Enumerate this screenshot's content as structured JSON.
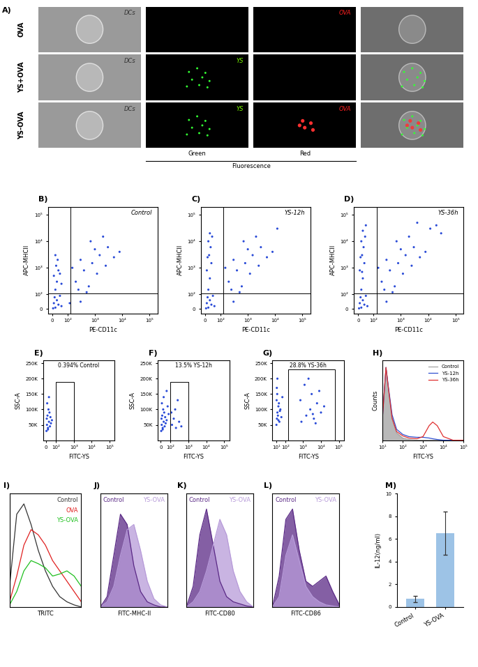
{
  "micrographs": {
    "panel": "A)",
    "rows": [
      {
        "label": "OVA",
        "texts": [
          "DCs",
          null,
          "OVA",
          null
        ],
        "signals": []
      },
      {
        "label": "YS+OVA",
        "texts": [
          "DCs",
          "YS",
          null,
          null
        ],
        "signals": [
          "green"
        ]
      },
      {
        "label": "YS-OVA",
        "texts": [
          "DCs",
          "YS",
          "OVA",
          null
        ],
        "signals": [
          "green",
          "red"
        ]
      }
    ],
    "channel_labels": [
      "Green",
      "Red"
    ],
    "footer": "Fluorescence"
  },
  "chart_data": [
    {
      "panel": "B)",
      "type": "scatter",
      "title": "Control",
      "x_label": "PE-CD11c",
      "y_label": "APC-MHCII",
      "log": true,
      "color": "#2a4bd7",
      "x": [
        5,
        20,
        40,
        10,
        30,
        60,
        15,
        50,
        20,
        30,
        10,
        40,
        25,
        35,
        20,
        50,
        60,
        200,
        400,
        800,
        1500,
        3000,
        600,
        1000,
        2500,
        5000,
        300,
        150,
        700,
        2000,
        8000,
        250,
        500,
        120,
        300,
        1200
      ],
      "y": [
        5,
        10,
        30,
        40,
        60,
        20,
        80,
        90,
        150,
        300,
        500,
        800,
        1200,
        2000,
        3000,
        600,
        250,
        300,
        800,
        1500,
        3000,
        6000,
        200,
        5000,
        1200,
        2500,
        2000,
        1000,
        10000,
        15000,
        4000,
        150,
        120,
        40,
        50,
        600
      ],
      "gate": {
        "x": 130,
        "y": 110
      },
      "xlim": [
        -30,
        200000
      ],
      "ylim": [
        -30,
        200000
      ],
      "xticks": [
        0,
        {
          "value": 100,
          "label": "10²"
        },
        {
          "value": 1000,
          "label": "10³"
        },
        {
          "value": 10000,
          "label": "10⁴"
        },
        {
          "value": 100000,
          "label": "10⁵"
        }
      ],
      "yticks": [
        0,
        {
          "value": 100,
          "label": "10²"
        },
        {
          "value": 1000,
          "label": "10³"
        },
        {
          "value": 10000,
          "label": "10⁴"
        },
        {
          "value": 100000,
          "label": "10⁵"
        }
      ]
    },
    {
      "panel": "C)",
      "type": "scatter",
      "title": "YS-12h",
      "x_label": "PE-CD11c",
      "y_label": "APC-MHCII",
      "log": true,
      "color": "#2a4bd7",
      "x": [
        5,
        20,
        40,
        10,
        30,
        60,
        15,
        50,
        20,
        30,
        10,
        40,
        25,
        35,
        20,
        45,
        30,
        15,
        200,
        400,
        800,
        1500,
        3000,
        600,
        1000,
        2500,
        5000,
        300,
        150,
        700,
        2000,
        8000,
        250,
        500,
        12000,
        300,
        1200
      ],
      "y": [
        5,
        10,
        30,
        40,
        60,
        20,
        80,
        90,
        150,
        400,
        800,
        1500,
        3000,
        6000,
        10000,
        15000,
        20000,
        2500,
        300,
        800,
        1500,
        3000,
        6000,
        200,
        5000,
        1200,
        2500,
        2000,
        1000,
        10000,
        15000,
        4000,
        150,
        120,
        30000,
        50,
        600
      ],
      "gate": {
        "x": 130,
        "y": 110
      },
      "xlim": [
        -30,
        200000
      ],
      "ylim": [
        -30,
        200000
      ],
      "xticks": [
        0,
        {
          "value": 100,
          "label": "10²"
        },
        {
          "value": 1000,
          "label": "10³"
        },
        {
          "value": 10000,
          "label": "10⁴"
        },
        {
          "value": 100000,
          "label": "10⁵"
        }
      ],
      "yticks": [
        0,
        {
          "value": 100,
          "label": "10²"
        },
        {
          "value": 1000,
          "label": "10³"
        },
        {
          "value": 10000,
          "label": "10⁴"
        },
        {
          "value": 100000,
          "label": "10⁵"
        }
      ]
    },
    {
      "panel": "D)",
      "type": "scatter",
      "title": "YS-36h",
      "x_label": "PE-CD11c",
      "y_label": "APC-MHCII",
      "log": true,
      "color": "#2a4bd7",
      "x": [
        5,
        20,
        40,
        10,
        30,
        60,
        15,
        50,
        20,
        30,
        10,
        40,
        25,
        35,
        20,
        45,
        30,
        15,
        50,
        25,
        200,
        400,
        800,
        1500,
        3000,
        600,
        1000,
        2500,
        5000,
        300,
        150,
        700,
        2000,
        8000,
        250,
        500,
        12000,
        300,
        1200,
        20000,
        30000,
        4000
      ],
      "y": [
        5,
        10,
        30,
        40,
        60,
        20,
        80,
        90,
        150,
        400,
        800,
        1500,
        3000,
        6000,
        10000,
        15000,
        25000,
        2500,
        40000,
        700,
        300,
        800,
        1500,
        3000,
        6000,
        200,
        5000,
        1200,
        2500,
        2000,
        1000,
        10000,
        15000,
        4000,
        150,
        120,
        30000,
        50,
        600,
        40000,
        20000,
        50000
      ],
      "gate": {
        "x": 130,
        "y": 110
      },
      "xlim": [
        -30,
        200000
      ],
      "ylim": [
        -30,
        200000
      ],
      "xticks": [
        0,
        {
          "value": 100,
          "label": "10²"
        },
        {
          "value": 1000,
          "label": "10³"
        },
        {
          "value": 10000,
          "label": "10⁴"
        },
        {
          "value": 100000,
          "label": "10⁵"
        }
      ],
      "yticks": [
        0,
        {
          "value": 100,
          "label": "10²"
        },
        {
          "value": 1000,
          "label": "10³"
        },
        {
          "value": 10000,
          "label": "10⁴"
        },
        {
          "value": 100000,
          "label": "10⁵"
        }
      ]
    },
    {
      "panel": "E)",
      "type": "scatter",
      "annotation": "0.394% Control",
      "x_label": "FITC-YS",
      "y_label": "SSC-A",
      "log": "x",
      "color": "#2a4bd7",
      "x": [
        5,
        10,
        20,
        30,
        15,
        40,
        8,
        25,
        50,
        12,
        35,
        60,
        20,
        45,
        30
      ],
      "y": [
        30000,
        50000,
        40000,
        60000,
        80000,
        45000,
        70000,
        100000,
        55000,
        120000,
        90000,
        65000,
        35000,
        75000,
        140000
      ],
      "gate": {
        "x": [
          100,
          1000
        ],
        "y": [
          0,
          190000
        ]
      },
      "xlim": [
        -30,
        200000
      ],
      "ylim": [
        0,
        260000
      ],
      "xticks": [
        0,
        {
          "value": 100,
          "label": "10²"
        },
        {
          "value": 1000,
          "label": "10³"
        },
        {
          "value": 10000,
          "label": "10⁴"
        },
        {
          "value": 100000,
          "label": "10⁵"
        }
      ],
      "yticks": [
        {
          "value": 50000,
          "label": "50K"
        },
        {
          "value": 100000,
          "label": "100K"
        },
        {
          "value": 150000,
          "label": "150K"
        },
        {
          "value": 200000,
          "label": "200K"
        },
        {
          "value": 250000,
          "label": "250K"
        }
      ]
    },
    {
      "panel": "F)",
      "type": "scatter",
      "annotation": "13.5% YS-12h",
      "x_label": "FITC-YS",
      "y_label": "SSC-A",
      "log": "x",
      "color": "#2a4bd7",
      "x": [
        5,
        10,
        20,
        30,
        15,
        40,
        8,
        25,
        50,
        12,
        35,
        60,
        20,
        45,
        30,
        70,
        80,
        120,
        150,
        200,
        300,
        180,
        250,
        110,
        400,
        60
      ],
      "y": [
        30000,
        50000,
        40000,
        60000,
        80000,
        45000,
        70000,
        100000,
        55000,
        120000,
        90000,
        65000,
        35000,
        75000,
        140000,
        110000,
        85000,
        50000,
        70000,
        40000,
        60000,
        100000,
        130000,
        90000,
        45000,
        160000
      ],
      "gate": {
        "x": [
          100,
          1000
        ],
        "y": [
          0,
          190000
        ]
      },
      "xlim": [
        -30,
        200000
      ],
      "ylim": [
        0,
        260000
      ],
      "xticks": [
        0,
        {
          "value": 100,
          "label": "10²"
        },
        {
          "value": 1000,
          "label": "10³"
        },
        {
          "value": 10000,
          "label": "10⁴"
        },
        {
          "value": 100000,
          "label": "10⁵"
        }
      ],
      "yticks": [
        {
          "value": 50000,
          "label": "50K"
        },
        {
          "value": 100000,
          "label": "100K"
        },
        {
          "value": 150000,
          "label": "150K"
        },
        {
          "value": 200000,
          "label": "200K"
        },
        {
          "value": 250000,
          "label": "250K"
        }
      ]
    },
    {
      "panel": "G)",
      "type": "scatter",
      "annotation": "28.8% YS-36h",
      "x_label": "FITC-YS",
      "y_label": "SSC-A",
      "log": "x",
      "color": "#2a4bd7",
      "x": [
        10,
        15,
        20,
        30,
        12,
        40,
        18,
        25,
        50,
        14,
        35,
        60,
        20,
        45,
        30,
        70,
        800,
        1500,
        2500,
        4000,
        6000,
        10000,
        3000,
        2000,
        5000,
        1200,
        8000,
        15000,
        3500,
        700
      ],
      "y": [
        50000,
        70000,
        90000,
        110000,
        130000,
        60000,
        150000,
        80000,
        100000,
        170000,
        120000,
        75000,
        200000,
        95000,
        65000,
        140000,
        60000,
        80000,
        100000,
        70000,
        120000,
        90000,
        150000,
        200000,
        55000,
        180000,
        160000,
        110000,
        85000,
        130000
      ],
      "gate": {
        "x": [
          150,
          60000
        ],
        "y": [
          0,
          230000
        ]
      },
      "xlim": [
        -30,
        200000
      ],
      "ylim": [
        0,
        260000
      ],
      "xticks": [
        {
          "value": 10,
          "label": "10¹"
        },
        {
          "value": 100,
          "label": "10²"
        },
        {
          "value": 1000,
          "label": "10³"
        },
        {
          "value": 10000,
          "label": "10⁴"
        },
        {
          "value": 100000,
          "label": "10⁵"
        }
      ],
      "yticks": [
        {
          "value": 50000,
          "label": "50K"
        },
        {
          "value": 100000,
          "label": "100K"
        },
        {
          "value": 150000,
          "label": "150K"
        },
        {
          "value": 200000,
          "label": "200K"
        },
        {
          "value": 250000,
          "label": "250K"
        }
      ]
    },
    {
      "panel": "H)",
      "type": "line",
      "x_label": "FITC-YS",
      "y_label": "Counts",
      "log": "x",
      "legend": "upper right",
      "tick_labels": "x",
      "x": [
        10,
        15,
        20,
        30,
        50,
        100,
        200,
        500,
        1000,
        2000,
        3000,
        5000,
        10000,
        30000,
        100000
      ],
      "series": [
        {
          "name": "Control",
          "type": "area",
          "color": "#a0a0a0",
          "values": [
            0.3,
            1.0,
            0.7,
            0.3,
            0.1,
            0.03,
            0.01,
            0,
            0,
            0,
            0,
            0,
            0,
            0,
            0
          ]
        },
        {
          "name": "YS-12h",
          "color": "#3050d0",
          "values": [
            0.3,
            1.0,
            0.72,
            0.35,
            0.15,
            0.08,
            0.05,
            0.04,
            0.04,
            0.03,
            0.02,
            0.01,
            0,
            0,
            0
          ]
        },
        {
          "name": "YS-36h",
          "color": "#e03030",
          "values": [
            0.3,
            1.0,
            0.7,
            0.3,
            0.12,
            0.06,
            0.03,
            0.02,
            0.05,
            0.2,
            0.25,
            0.2,
            0.05,
            0,
            0
          ]
        }
      ],
      "xlim": [
        10,
        100000
      ],
      "ylim": [
        0,
        1.1
      ],
      "xticks": [
        {
          "value": 10,
          "label": "10¹"
        },
        {
          "value": 100,
          "label": "10²"
        },
        {
          "value": 1000,
          "label": "10³"
        },
        {
          "value": 10000,
          "label": "10⁴"
        },
        {
          "value": 100000,
          "label": "10⁵"
        }
      ]
    },
    {
      "panel": "I)",
      "type": "line",
      "x_label": "TRITC",
      "tick_labels": false,
      "x": [
        0,
        1,
        2,
        3,
        4,
        5,
        6,
        7,
        8,
        9,
        10
      ],
      "series": [
        {
          "name": "Control",
          "color": "#333333",
          "values": [
            0.2,
            0.9,
            1.0,
            0.8,
            0.55,
            0.35,
            0.2,
            0.1,
            0.05,
            0.02,
            0.0
          ]
        },
        {
          "name": "OVA",
          "color": "#e02020",
          "values": [
            0.05,
            0.3,
            0.6,
            0.75,
            0.7,
            0.6,
            0.45,
            0.35,
            0.25,
            0.15,
            0.05
          ]
        },
        {
          "name": "YS-OVA",
          "color": "#20c020",
          "values": [
            0.02,
            0.15,
            0.35,
            0.45,
            0.42,
            0.38,
            0.3,
            0.32,
            0.35,
            0.3,
            0.2
          ]
        }
      ],
      "xlim": [
        0,
        10
      ],
      "ylim": [
        0,
        1.1
      ]
    },
    {
      "panel": "J)",
      "type": "area",
      "x_label": "FITC-MHC-II",
      "tick_labels": false,
      "x": [
        0,
        1,
        2,
        3,
        4,
        5,
        6,
        7,
        8,
        9,
        10
      ],
      "series": [
        {
          "name": "Control",
          "color": "#5b2a86",
          "values": [
            0,
            0.1,
            0.5,
            0.9,
            0.8,
            0.4,
            0.15,
            0.05,
            0.02,
            0,
            0
          ]
        },
        {
          "name": "YS-OVA",
          "color": "#b79bd9",
          "values": [
            0,
            0.05,
            0.2,
            0.5,
            0.75,
            0.8,
            0.55,
            0.25,
            0.08,
            0.02,
            0
          ]
        }
      ],
      "xlim": [
        0,
        10
      ],
      "ylim": [
        0,
        1.1
      ]
    },
    {
      "panel": "K)",
      "type": "area",
      "x_label": "FITC-CD80",
      "tick_labels": false,
      "x": [
        0,
        1,
        2,
        3,
        4,
        5,
        6,
        7,
        8,
        9,
        10
      ],
      "series": [
        {
          "name": "Control",
          "color": "#5b2a86",
          "values": [
            0,
            0.2,
            0.7,
            0.95,
            0.6,
            0.25,
            0.1,
            0.05,
            0.03,
            0.01,
            0
          ]
        },
        {
          "name": "YS-OVA",
          "color": "#b79bd9",
          "values": [
            0,
            0.05,
            0.15,
            0.35,
            0.6,
            0.85,
            0.7,
            0.35,
            0.15,
            0.05,
            0
          ]
        }
      ],
      "xlim": [
        0,
        10
      ],
      "ylim": [
        0,
        1.1
      ]
    },
    {
      "panel": "L)",
      "type": "area",
      "x_label": "FITC-CD86",
      "tick_labels": false,
      "x": [
        0,
        1,
        2,
        3,
        4,
        5,
        6,
        7,
        8,
        9,
        10
      ],
      "series": [
        {
          "name": "Control",
          "color": "#5b2a86",
          "values": [
            0,
            0.3,
            0.85,
            0.95,
            0.55,
            0.25,
            0.2,
            0.25,
            0.3,
            0.15,
            0.02
          ]
        },
        {
          "name": "YS-OVA",
          "color": "#b79bd9",
          "values": [
            0,
            0.1,
            0.5,
            0.7,
            0.45,
            0.2,
            0.1,
            0.05,
            0.02,
            0.01,
            0
          ]
        }
      ],
      "xlim": [
        0,
        10
      ],
      "ylim": [
        0,
        1.1
      ]
    },
    {
      "panel": "M)",
      "type": "bar",
      "y_label": "IL-12(ng/ml)",
      "categories": [
        "Control",
        "YS-OVA"
      ],
      "values": [
        0.7,
        6.5
      ],
      "errors": [
        0.3,
        1.9
      ],
      "color": "#9dc3e6",
      "ylim": [
        0,
        10
      ],
      "yticks": [
        0,
        2,
        4,
        6,
        8,
        10
      ]
    }
  ]
}
